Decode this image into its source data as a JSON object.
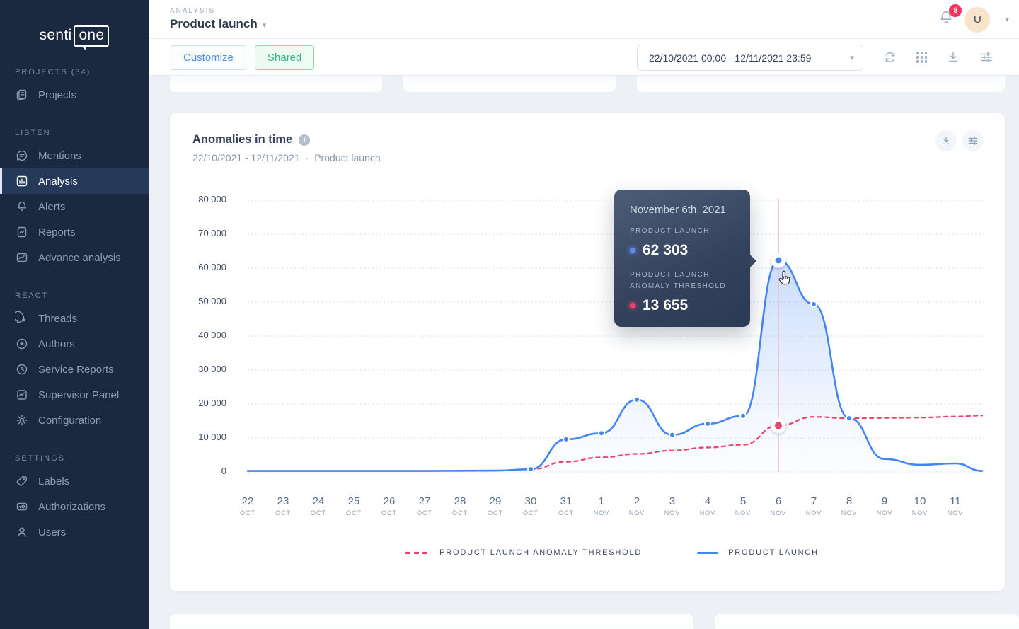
{
  "colors": {
    "sidebar_bg": "#1a2940",
    "sidebar_active_bg": "#25395a",
    "accent_blue": "#4285f4",
    "accent_red": "#f0436b",
    "badge_red": "#f5365c",
    "shared_green": "#34b97c",
    "customize_blue": "#4a90e2",
    "content_bg": "#edf0f5",
    "hover_line_pink": "#f3c3d3"
  },
  "sidebar": {
    "logo": {
      "part1": "senti",
      "part2": "one"
    },
    "sections": [
      {
        "label": "PROJECTS (34)",
        "items": [
          {
            "label": "Projects"
          }
        ]
      },
      {
        "label": "LISTEN",
        "items": [
          {
            "label": "Mentions"
          },
          {
            "label": "Analysis"
          },
          {
            "label": "Alerts"
          },
          {
            "label": "Reports"
          },
          {
            "label": "Advance analysis"
          }
        ]
      },
      {
        "label": "REACT",
        "items": [
          {
            "label": "Threads"
          },
          {
            "label": "Authors"
          },
          {
            "label": "Service Reports"
          },
          {
            "label": "Supervisor Panel"
          },
          {
            "label": "Configuration"
          }
        ]
      },
      {
        "label": "SETTINGS",
        "items": [
          {
            "label": "Labels"
          },
          {
            "label": "Authorizations"
          },
          {
            "label": "Users"
          }
        ]
      }
    ]
  },
  "header": {
    "eyebrow": "ANALYSIS",
    "title": "Product launch",
    "notifications_count": "8",
    "avatar_initial": "U"
  },
  "toolbar": {
    "customize_label": "Customize",
    "shared_label": "Shared",
    "date_range": "22/10/2021 00:00 - 12/11/2021 23:59"
  },
  "chart_card": {
    "title": "Anomalies in time",
    "info": "i",
    "subtitle_dates": "22/10/2021 - 12/11/2021",
    "subtitle_sep": "·",
    "subtitle_project": "Product launch"
  },
  "tooltip": {
    "date": "November 6th, 2021",
    "series1_label": "PRODUCT LAUNCH",
    "series1_value": "62 303",
    "series2_label_line1": "PRODUCT LAUNCH",
    "series2_label_line2": "ANOMALY THRESHOLD",
    "series2_value": "13 655"
  },
  "legend": [
    {
      "label": "PRODUCT LAUNCH ANOMALY THRESHOLD",
      "style": "dashed",
      "color": "#f0436b"
    },
    {
      "label": "PRODUCT LAUNCH",
      "style": "solid",
      "color": "#4285f4"
    }
  ],
  "chart_data": {
    "type": "line",
    "title": "Anomalies in time",
    "xlabel": "",
    "ylabel": "",
    "ylim": [
      0,
      80000
    ],
    "grid": "dotted-horizontal",
    "legend_position": "bottom",
    "ytick_labels": [
      "80 000",
      "70 000",
      "60 000",
      "50 000",
      "40 000",
      "30 000",
      "20 000",
      "10 000",
      "0"
    ],
    "categories": [
      {
        "day": "22",
        "month": "OCT"
      },
      {
        "day": "23",
        "month": "OCT"
      },
      {
        "day": "24",
        "month": "OCT"
      },
      {
        "day": "25",
        "month": "OCT"
      },
      {
        "day": "26",
        "month": "OCT"
      },
      {
        "day": "27",
        "month": "OCT"
      },
      {
        "day": "28",
        "month": "OCT"
      },
      {
        "day": "29",
        "month": "OCT"
      },
      {
        "day": "30",
        "month": "OCT"
      },
      {
        "day": "31",
        "month": "OCT"
      },
      {
        "day": "1",
        "month": "NOV"
      },
      {
        "day": "2",
        "month": "NOV"
      },
      {
        "day": "3",
        "month": "NOV"
      },
      {
        "day": "4",
        "month": "NOV"
      },
      {
        "day": "5",
        "month": "NOV"
      },
      {
        "day": "6",
        "month": "NOV"
      },
      {
        "day": "7",
        "month": "NOV"
      },
      {
        "day": "8",
        "month": "NOV"
      },
      {
        "day": "9",
        "month": "NOV"
      },
      {
        "day": "10",
        "month": "NOV"
      },
      {
        "day": "11",
        "month": "NOV"
      }
    ],
    "hover_index": 15,
    "hover_date": "November 6th, 2021",
    "series": [
      {
        "name": "PRODUCT LAUNCH",
        "color": "#4285f4",
        "style": "solid",
        "values": [
          300,
          300,
          300,
          300,
          300,
          300,
          350,
          400,
          800,
          9600,
          11400,
          21300,
          10900,
          14200,
          16500,
          62303,
          49400,
          15800,
          3800,
          2100,
          2500
        ],
        "tail_value": 300,
        "dot_indices": [
          8,
          9,
          10,
          11,
          12,
          13,
          14,
          15,
          16,
          17
        ],
        "hover_value": 62303
      },
      {
        "name": "PRODUCT LAUNCH ANOMALY THRESHOLD",
        "color": "#f0436b",
        "style": "dashed",
        "values": [
          null,
          null,
          null,
          null,
          null,
          null,
          null,
          null,
          800,
          3000,
          4300,
          5300,
          6300,
          7200,
          8000,
          13655,
          16200,
          15800,
          15900,
          16000,
          16300
        ],
        "tail_value": 16600,
        "dot_indices": [],
        "hover_value": 13655
      }
    ]
  }
}
